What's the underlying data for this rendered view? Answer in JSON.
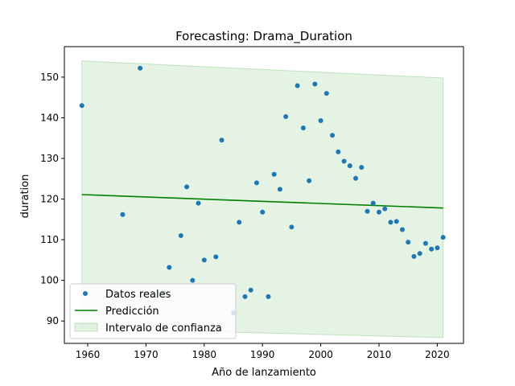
{
  "chart_data": {
    "type": "scatter",
    "title": "Forecasting: Drama_Duration",
    "xlabel": "Año de lanzamiento",
    "ylabel": "duration",
    "xlim": [
      1956,
      2024.5
    ],
    "ylim": [
      84.5,
      157.5
    ],
    "xticks": [
      1960,
      1970,
      1980,
      1990,
      2000,
      2010,
      2020
    ],
    "yticks": [
      90,
      100,
      110,
      120,
      130,
      140,
      150
    ],
    "grid": false,
    "legend_position": "lower-left",
    "colors": {
      "points": "#1f77b4",
      "line": "#008000",
      "band": "#2ca02c"
    },
    "series": [
      {
        "name": "Datos reales",
        "kind": "scatter",
        "x": [
          1959,
          1966,
          1969,
          1973,
          1974,
          1976,
          1977,
          1978,
          1979,
          1980,
          1982,
          1983,
          1985,
          1986,
          1987,
          1988,
          1989,
          1990,
          1991,
          1992,
          1993,
          1994,
          1995,
          1996,
          1997,
          1998,
          1999,
          2000,
          2001,
          2002,
          2003,
          2004,
          2005,
          2006,
          2007,
          2008,
          2009,
          2010,
          2011,
          2012,
          2013,
          2014,
          2015,
          2016,
          2017,
          2018,
          2019,
          2020,
          2021
        ],
        "y": [
          143,
          116.2,
          152.2,
          97,
          103.2,
          111,
          123,
          100,
          119,
          105,
          105.8,
          134.5,
          92,
          114.3,
          96,
          97.6,
          124,
          116.8,
          96,
          126.1,
          122.4,
          140.3,
          113.1,
          147.9,
          137.5,
          124.5,
          148.3,
          139.3,
          146,
          135.7,
          131.6,
          129.3,
          128.2,
          125.1,
          127.8,
          117,
          119,
          116.8,
          117.6,
          114.3,
          114.5,
          112.5,
          109.4,
          105.9,
          106.6,
          109.1,
          107.7,
          108,
          110.6
        ]
      },
      {
        "name": "Predicción",
        "kind": "line",
        "x": [
          1959,
          2021
        ],
        "y": [
          121.1,
          117.8
        ]
      },
      {
        "name": "Intervalo de confianza",
        "kind": "band",
        "x": [
          1959,
          2021
        ],
        "lower": [
          88.2,
          85.9
        ],
        "upper": [
          154,
          149.8
        ]
      }
    ]
  }
}
